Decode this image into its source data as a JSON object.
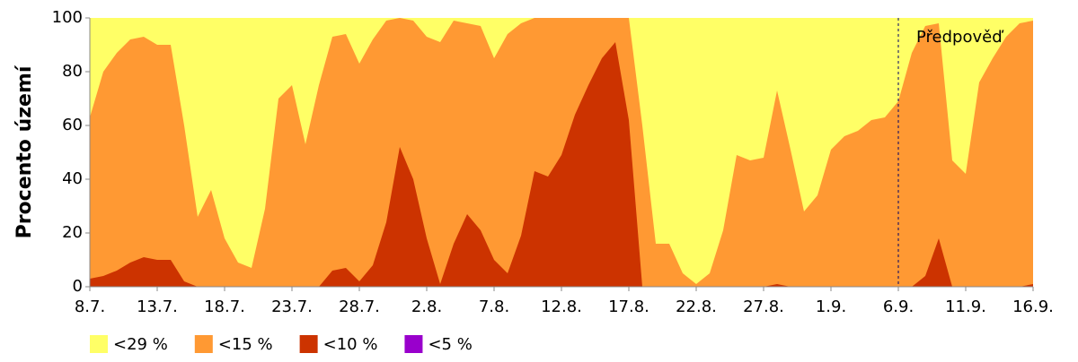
{
  "chart_data": {
    "type": "area",
    "y_label": "Procento území",
    "categories": [
      "8.7.",
      null,
      null,
      null,
      null,
      "13.7.",
      null,
      null,
      null,
      null,
      "18.7.",
      null,
      null,
      null,
      null,
      "23.7.",
      null,
      null,
      null,
      null,
      "28.7.",
      null,
      null,
      null,
      null,
      "2.8.",
      null,
      null,
      null,
      null,
      "7.8.",
      null,
      null,
      null,
      null,
      "12.8.",
      null,
      null,
      null,
      null,
      "17.8.",
      null,
      null,
      null,
      null,
      "22.8.",
      null,
      null,
      null,
      null,
      "27.8.",
      null,
      null,
      null,
      null,
      "1.9.",
      null,
      null,
      null,
      null,
      "6.9.",
      null,
      null,
      null,
      null,
      "11.9.",
      null,
      null,
      null,
      null,
      "16.9."
    ],
    "series": [
      {
        "name": "<29 %",
        "color": "#ffff66",
        "values": [
          100,
          100,
          100,
          100,
          100,
          100,
          100,
          100,
          100,
          100,
          100,
          100,
          100,
          100,
          100,
          100,
          100,
          100,
          100,
          100,
          100,
          100,
          100,
          100,
          100,
          100,
          100,
          100,
          100,
          100,
          100,
          100,
          100,
          100,
          100,
          100,
          100,
          100,
          100,
          100,
          100,
          100,
          100,
          100,
          100,
          100,
          100,
          100,
          100,
          100,
          100,
          100,
          100,
          100,
          100,
          100,
          100,
          100,
          100,
          100,
          100,
          100,
          100,
          100,
          100,
          100,
          100,
          100,
          100,
          100,
          100
        ]
      },
      {
        "name": "<15 %",
        "color": "#ff9933",
        "values": [
          63,
          80,
          87,
          92,
          93,
          90,
          90,
          60,
          26,
          36,
          18,
          9,
          7,
          29,
          70,
          75,
          53,
          75,
          93,
          94,
          83,
          92,
          99,
          100,
          99,
          93,
          91,
          99,
          98,
          97,
          85,
          94,
          98,
          100,
          100,
          100,
          100,
          100,
          100,
          100,
          100,
          60,
          16,
          16,
          5,
          1,
          5,
          21,
          49,
          47,
          48,
          73,
          51,
          28,
          34,
          51,
          56,
          58,
          62,
          63,
          69,
          87,
          97,
          98,
          47,
          42,
          76,
          85,
          93,
          98,
          99
        ]
      },
      {
        "name": "<10 %",
        "color": "#cc3300",
        "values": [
          3,
          4,
          6,
          9,
          11,
          10,
          10,
          2,
          0,
          0,
          0,
          0,
          0,
          0,
          0,
          0,
          0,
          0,
          6,
          7,
          2,
          8,
          24,
          52,
          40,
          18,
          1,
          16,
          27,
          21,
          10,
          5,
          19,
          43,
          41,
          49,
          64,
          75,
          85,
          91,
          62,
          0,
          0,
          0,
          0,
          0,
          0,
          0,
          0,
          0,
          0,
          1,
          0,
          0,
          0,
          0,
          0,
          0,
          0,
          0,
          0,
          0,
          4,
          18,
          0,
          0,
          0,
          0,
          0,
          0,
          1
        ]
      },
      {
        "name": "<5 %",
        "color": "#9900cc",
        "values": [
          0,
          0,
          0,
          0,
          0,
          0,
          0,
          0,
          0,
          0,
          0,
          0,
          0,
          0,
          0,
          0,
          0,
          0,
          0,
          0,
          0,
          0,
          0,
          0,
          0,
          0,
          0,
          0,
          0,
          0,
          0,
          0,
          0,
          0,
          0,
          0,
          0,
          0,
          0,
          0,
          0,
          0,
          0,
          0,
          0,
          0,
          0,
          0,
          0,
          0,
          0,
          0,
          0,
          0,
          0,
          0,
          0,
          0,
          0,
          0,
          0,
          0,
          0,
          0,
          0,
          0,
          0,
          0,
          0,
          0,
          0
        ]
      }
    ],
    "ylim": [
      0,
      100
    ],
    "yticks": [
      0,
      20,
      40,
      60,
      80,
      100
    ],
    "annotation": {
      "text": "Předpověď",
      "at": "6.9."
    },
    "legend": "bottom"
  }
}
